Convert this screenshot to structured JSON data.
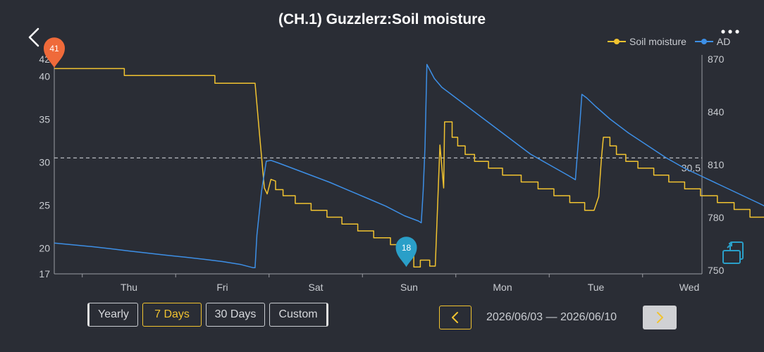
{
  "header": {
    "title": "(CH.1) Guzzlerz:Soil moisture",
    "back_icon": "chevron-left-icon",
    "more_icon": "more-dots-icon"
  },
  "colors": {
    "soil": "#f1c330",
    "ad": "#3d8fe6",
    "grid": "#c9ccd1",
    "max_marker": "#ef6a3a",
    "min_marker": "#2a9fc8"
  },
  "chart_data": {
    "type": "line",
    "legend_position": "top-right",
    "x_ticks": [
      "Thu",
      "Fri",
      "Sat",
      "Sun",
      "Mon",
      "Tue",
      "Wed"
    ],
    "y_left": {
      "ticks": [
        17,
        20,
        25,
        30,
        35,
        40,
        42
      ],
      "range": [
        17,
        42
      ]
    },
    "y_right": {
      "ticks": [
        750,
        780,
        810,
        840,
        870
      ],
      "range": [
        748,
        870
      ]
    },
    "reference_line": {
      "value": 30.5,
      "label": "30.5"
    },
    "max_marker": {
      "label": "41",
      "x": -0.8,
      "y": 41
    },
    "min_marker": {
      "label": "18",
      "x": 2.97,
      "y": 17.8
    },
    "series": [
      {
        "name": "Soil moisture",
        "axis": "left",
        "step": true,
        "points": [
          [
            -0.8,
            40.9
          ],
          [
            -0.05,
            40.9
          ],
          [
            -0.05,
            40.1
          ],
          [
            0.92,
            40.1
          ],
          [
            0.92,
            39.2
          ],
          [
            1.35,
            39.2
          ],
          [
            1.4,
            33
          ],
          [
            1.45,
            27
          ],
          [
            1.48,
            26.3
          ],
          [
            1.52,
            28
          ],
          [
            1.57,
            27.8
          ],
          [
            1.57,
            26.8
          ],
          [
            1.65,
            26.8
          ],
          [
            1.65,
            26.1
          ],
          [
            1.78,
            26.1
          ],
          [
            1.78,
            25.2
          ],
          [
            1.95,
            25.2
          ],
          [
            1.95,
            24.4
          ],
          [
            2.12,
            24.4
          ],
          [
            2.12,
            23.6
          ],
          [
            2.28,
            23.6
          ],
          [
            2.28,
            22.8
          ],
          [
            2.45,
            22.8
          ],
          [
            2.45,
            22
          ],
          [
            2.62,
            22
          ],
          [
            2.62,
            21.2
          ],
          [
            2.8,
            21.2
          ],
          [
            2.8,
            20.4
          ],
          [
            2.98,
            20.4
          ],
          [
            2.98,
            19.3
          ],
          [
            3.05,
            19.3
          ],
          [
            3.05,
            17.8
          ],
          [
            3.12,
            17.8
          ],
          [
            3.12,
            18.6
          ],
          [
            3.22,
            18.6
          ],
          [
            3.22,
            17.9
          ],
          [
            3.28,
            17.9
          ],
          [
            3.33,
            32
          ],
          [
            3.37,
            27
          ],
          [
            3.38,
            34.7
          ],
          [
            3.46,
            34.7
          ],
          [
            3.46,
            32.9
          ],
          [
            3.52,
            32.9
          ],
          [
            3.52,
            31.9
          ],
          [
            3.6,
            31.9
          ],
          [
            3.6,
            30.9
          ],
          [
            3.7,
            30.9
          ],
          [
            3.7,
            30.1
          ],
          [
            3.85,
            30.1
          ],
          [
            3.85,
            29.3
          ],
          [
            4.0,
            29.3
          ],
          [
            4.0,
            28.5
          ],
          [
            4.2,
            28.5
          ],
          [
            4.2,
            27.7
          ],
          [
            4.38,
            27.7
          ],
          [
            4.38,
            26.9
          ],
          [
            4.55,
            26.9
          ],
          [
            4.55,
            26.1
          ],
          [
            4.72,
            26.1
          ],
          [
            4.72,
            25.3
          ],
          [
            4.88,
            25.3
          ],
          [
            4.88,
            24.4
          ],
          [
            4.98,
            24.4
          ],
          [
            5.03,
            26
          ],
          [
            5.06,
            30.5
          ],
          [
            5.08,
            32.9
          ],
          [
            5.15,
            32.9
          ],
          [
            5.15,
            31.9
          ],
          [
            5.22,
            31.9
          ],
          [
            5.22,
            30.9
          ],
          [
            5.32,
            30.9
          ],
          [
            5.32,
            30.1
          ],
          [
            5.45,
            30.1
          ],
          [
            5.45,
            29.3
          ],
          [
            5.62,
            29.3
          ],
          [
            5.62,
            28.5
          ],
          [
            5.78,
            28.5
          ],
          [
            5.78,
            27.7
          ],
          [
            5.95,
            27.7
          ],
          [
            5.95,
            26.9
          ],
          [
            6.12,
            26.9
          ],
          [
            6.12,
            26.1
          ],
          [
            6.3,
            26.1
          ],
          [
            6.3,
            25.3
          ],
          [
            6.48,
            25.3
          ],
          [
            6.48,
            24.5
          ],
          [
            6.65,
            24.5
          ],
          [
            6.65,
            23.6
          ],
          [
            6.82,
            23.6
          ],
          [
            6.82,
            22.8
          ],
          [
            7.0,
            22.8
          ],
          [
            7.1,
            22.8
          ],
          [
            7.12,
            21.9
          ]
        ]
      },
      {
        "name": "AD",
        "axis": "right",
        "step": false,
        "points": [
          [
            -0.8,
            765.5
          ],
          [
            -0.6,
            764.5
          ],
          [
            -0.4,
            763.5
          ],
          [
            -0.2,
            762.3
          ],
          [
            0.0,
            761
          ],
          [
            0.2,
            759.8
          ],
          [
            0.4,
            758.6
          ],
          [
            0.6,
            757.5
          ],
          [
            0.8,
            756.3
          ],
          [
            1.0,
            755
          ],
          [
            1.2,
            753.3
          ],
          [
            1.33,
            751.5
          ],
          [
            1.35,
            751.5
          ],
          [
            1.37,
            770
          ],
          [
            1.42,
            795
          ],
          [
            1.47,
            812
          ],
          [
            1.52,
            812.5
          ],
          [
            1.6,
            811
          ],
          [
            1.75,
            808
          ],
          [
            1.95,
            804
          ],
          [
            2.15,
            800
          ],
          [
            2.35,
            795.5
          ],
          [
            2.55,
            791
          ],
          [
            2.75,
            786.5
          ],
          [
            2.95,
            781
          ],
          [
            3.1,
            778
          ],
          [
            3.13,
            777
          ],
          [
            3.15,
            795
          ],
          [
            3.17,
            820
          ],
          [
            3.19,
            867
          ],
          [
            3.22,
            864
          ],
          [
            3.27,
            859
          ],
          [
            3.35,
            854
          ],
          [
            3.5,
            848
          ],
          [
            3.7,
            840
          ],
          [
            3.9,
            832
          ],
          [
            4.1,
            824
          ],
          [
            4.3,
            816
          ],
          [
            4.5,
            810
          ],
          [
            4.7,
            804
          ],
          [
            4.78,
            801.5
          ],
          [
            4.8,
            815
          ],
          [
            4.83,
            835
          ],
          [
            4.85,
            850
          ],
          [
            4.9,
            848
          ],
          [
            5.0,
            843
          ],
          [
            5.15,
            836
          ],
          [
            5.35,
            828
          ],
          [
            5.55,
            821
          ],
          [
            5.75,
            814
          ],
          [
            5.95,
            808
          ],
          [
            6.15,
            803
          ],
          [
            6.35,
            798
          ],
          [
            6.55,
            793
          ],
          [
            6.75,
            788
          ],
          [
            6.9,
            784
          ],
          [
            7.1,
            780
          ],
          [
            7.13,
            778.5
          ]
        ]
      }
    ]
  },
  "range_buttons": [
    {
      "label": "Yearly",
      "active": false
    },
    {
      "label": "7 Days",
      "active": true
    },
    {
      "label": "30 Days",
      "active": false
    },
    {
      "label": "Custom",
      "active": false
    }
  ],
  "date_nav": {
    "range_text": "2026/06/03 — 2026/06/10",
    "prev_icon": "chevron-left-icon",
    "next_icon": "chevron-right-icon"
  },
  "side_icon": "expand-screen-icon"
}
